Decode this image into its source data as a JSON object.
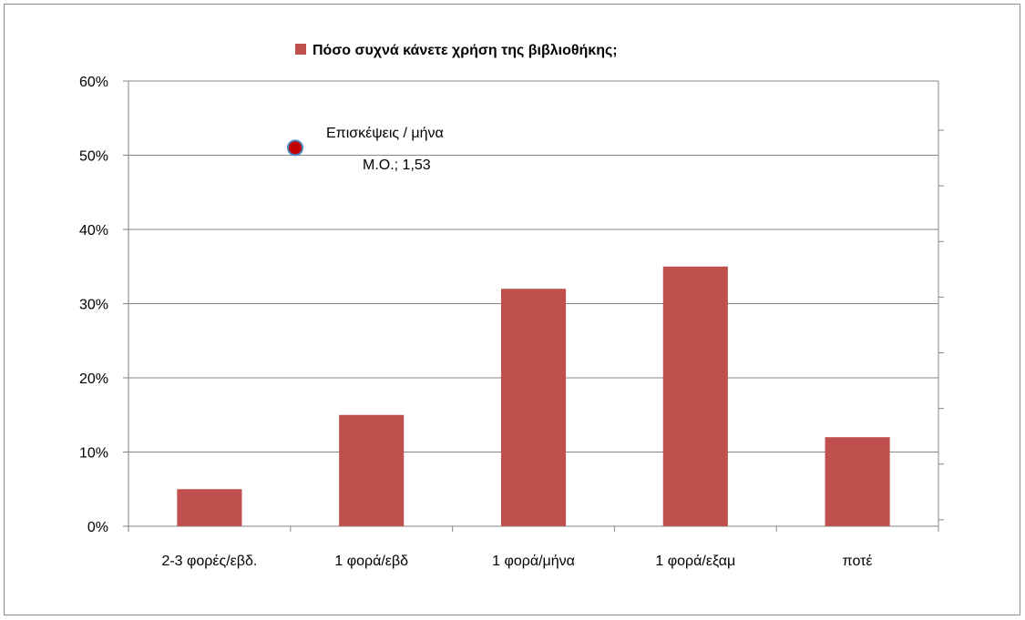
{
  "chart_data": {
    "type": "bar",
    "categories": [
      "2-3 φορές/εβδ.",
      "1 φορά/εβδ",
      "1 φορά/μήνα",
      "1 φορά/εξαμ",
      "ποτέ"
    ],
    "series": [
      {
        "name": "Πόσο συχνά κάνετε χρήση της βιβλιοθήκης;",
        "values": [
          0.05,
          0.15,
          0.32,
          0.35,
          0.12
        ],
        "color": "#c0504d"
      }
    ],
    "y_tick_labels": [
      "0%",
      "10%",
      "20%",
      "30%",
      "40%",
      "50%",
      "60%"
    ],
    "ylim": [
      0,
      0.6
    ],
    "grid": true,
    "legend_position": "top",
    "annotation": {
      "line1": "Επισκέψεις / μήνα",
      "line2": "Μ.Ο.; 1,53",
      "marker_y": 0.51,
      "marker_color": "#c00000",
      "marker_border": "#4f81bd"
    },
    "secondary_axis": "right"
  }
}
